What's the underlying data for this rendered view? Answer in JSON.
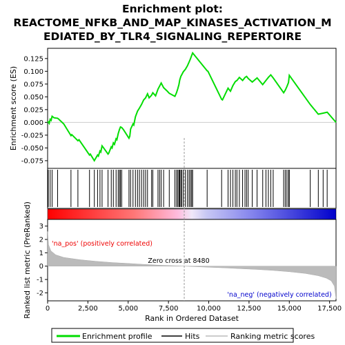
{
  "title_line1": "Enrichment plot:",
  "title_line2": "REACTOME_NFKB_AND_MAP_KINASES_ACTIVATION_M",
  "title_line3": "EDIATED_BY_TLR4_SIGNALING_REPERTOIRE",
  "es_ylabel": "Enrichment score (ES)",
  "metric_ylabel": "Ranked list metric (PreRanked)",
  "xlabel": "Rank in Ordered Dataset",
  "pos_label": "'na_pos' (positively correlated)",
  "neg_label": "'na_neg' (negatively correlated)",
  "zero_cross_label": "Zero cross at 8480",
  "legend": {
    "enrichment": "Enrichment profile",
    "hits": "Hits",
    "ranking": "Ranking metric scores"
  },
  "colors": {
    "enrichment": "#00dd00",
    "hits": "#000000",
    "ranking": "#bbbbbb",
    "pos_text": "#ee0000",
    "neg_text": "#0000cc"
  },
  "chart_data": {
    "type": "line",
    "x_range": [
      0,
      17900
    ],
    "x_ticks": [
      0,
      2500,
      5000,
      7500,
      10000,
      12500,
      15000,
      17500
    ],
    "x_tick_labels": [
      "0",
      "2,500",
      "5,000",
      "7,500",
      "10,000",
      "12,500",
      "15,000",
      "17,500"
    ],
    "zero_cross": 8480,
    "es_ylim": [
      -0.09,
      0.145
    ],
    "es_ticks": [
      -0.075,
      -0.05,
      -0.025,
      0.0,
      0.025,
      0.05,
      0.075,
      0.1,
      0.125
    ],
    "es_tick_labels": [
      "-0.075",
      "-0.050",
      "-0.025",
      "0.000",
      "0.025",
      "0.050",
      "0.075",
      "0.100",
      "0.125"
    ],
    "metric_ylim": [
      -2.6,
      3.5
    ],
    "metric_ticks": [
      -2,
      -1,
      0,
      1,
      2,
      3
    ],
    "metric_tick_labels": [
      "-2",
      "-1",
      "0",
      "1",
      "2",
      "3"
    ],
    "metric_profile": {
      "ranks": [
        0,
        60,
        200,
        500,
        1000,
        2000,
        3000,
        4000,
        5000,
        6000,
        7000,
        8000,
        8480,
        9000,
        10000,
        11000,
        12000,
        13000,
        14000,
        15000,
        16000,
        16800,
        17300,
        17600,
        17800,
        17900
      ],
      "values": [
        2.6,
        1.6,
        1.15,
        0.85,
        0.65,
        0.48,
        0.36,
        0.27,
        0.2,
        0.13,
        0.07,
        0.02,
        0.0,
        -0.03,
        -0.08,
        -0.13,
        -0.19,
        -0.25,
        -0.32,
        -0.42,
        -0.55,
        -0.72,
        -0.9,
        -1.1,
        -1.5,
        -2.45
      ]
    },
    "hits": [
      40,
      160,
      280,
      620,
      1450,
      1880,
      2600,
      2900,
      3100,
      3250,
      3380,
      3750,
      3950,
      4080,
      4250,
      4380,
      4460,
      4520,
      4600,
      5050,
      5150,
      5300,
      5450,
      5580,
      5700,
      5830,
      5960,
      6080,
      6200,
      6450,
      6530,
      6850,
      6950,
      7050,
      7200,
      7550,
      7900,
      8000,
      8080,
      8150,
      8200,
      8270,
      8320,
      8420,
      8550,
      8680,
      8780,
      8860,
      8940,
      9000,
      9900,
      10800,
      11200,
      11350,
      11500,
      11650,
      11750,
      11900,
      12100,
      12250,
      12350,
      12450,
      12700,
      13000,
      13350,
      13550,
      13700,
      13850,
      14000,
      14650,
      14750,
      14850,
      14950,
      15000,
      16300,
      16800,
      17100,
      17350
    ],
    "series": [
      {
        "name": "Enrichment profile",
        "x": [
          0,
          40,
          100,
          160,
          220,
          280,
          400,
          620,
          700,
          1000,
          1450,
          1500,
          1880,
          1950,
          2300,
          2600,
          2650,
          2900,
          2950,
          3100,
          3150,
          3250,
          3300,
          3380,
          3450,
          3750,
          3800,
          3950,
          4000,
          4080,
          4150,
          4250,
          4300,
          4380,
          4460,
          4520,
          4600,
          4700,
          5050,
          5100,
          5150,
          5300,
          5350,
          5450,
          5580,
          5700,
          5830,
          5960,
          6080,
          6200,
          6300,
          6450,
          6530,
          6700,
          6850,
          6950,
          7050,
          7200,
          7400,
          7550,
          7900,
          8000,
          8080,
          8150,
          8200,
          8270,
          8320,
          8420,
          8550,
          8680,
          8780,
          8860,
          8940,
          9000,
          9900,
          9950,
          10800,
          10850,
          11200,
          11350,
          11500,
          11650,
          11750,
          11900,
          12100,
          12250,
          12350,
          12450,
          12700,
          13000,
          13350,
          13550,
          13700,
          13850,
          14000,
          14650,
          14750,
          14850,
          14950,
          15000,
          16300,
          16800,
          17100,
          17350,
          17900
        ],
        "y": [
          0.0,
          0.001,
          -0.002,
          0.006,
          0.004,
          0.012,
          0.009,
          0.008,
          0.006,
          -0.003,
          -0.026,
          -0.024,
          -0.036,
          -0.034,
          -0.05,
          -0.064,
          -0.062,
          -0.075,
          -0.072,
          -0.064,
          -0.066,
          -0.056,
          -0.058,
          -0.046,
          -0.049,
          -0.062,
          -0.06,
          -0.048,
          -0.05,
          -0.04,
          -0.043,
          -0.032,
          -0.034,
          -0.022,
          -0.014,
          -0.009,
          -0.01,
          -0.014,
          -0.031,
          -0.027,
          -0.013,
          -0.003,
          -0.005,
          0.011,
          0.022,
          0.028,
          0.035,
          0.044,
          0.048,
          0.056,
          0.048,
          0.053,
          0.058,
          0.052,
          0.065,
          0.071,
          0.077,
          0.068,
          0.062,
          0.057,
          0.051,
          0.058,
          0.066,
          0.074,
          0.083,
          0.09,
          0.093,
          0.099,
          0.104,
          0.111,
          0.118,
          0.124,
          0.131,
          0.136,
          0.101,
          0.1,
          0.045,
          0.044,
          0.067,
          0.061,
          0.072,
          0.08,
          0.082,
          0.088,
          0.082,
          0.088,
          0.09,
          0.086,
          0.079,
          0.087,
          0.074,
          0.082,
          0.088,
          0.093,
          0.087,
          0.058,
          0.063,
          0.07,
          0.078,
          0.092,
          0.035,
          0.016,
          0.018,
          0.02,
          0.0
        ]
      }
    ]
  }
}
